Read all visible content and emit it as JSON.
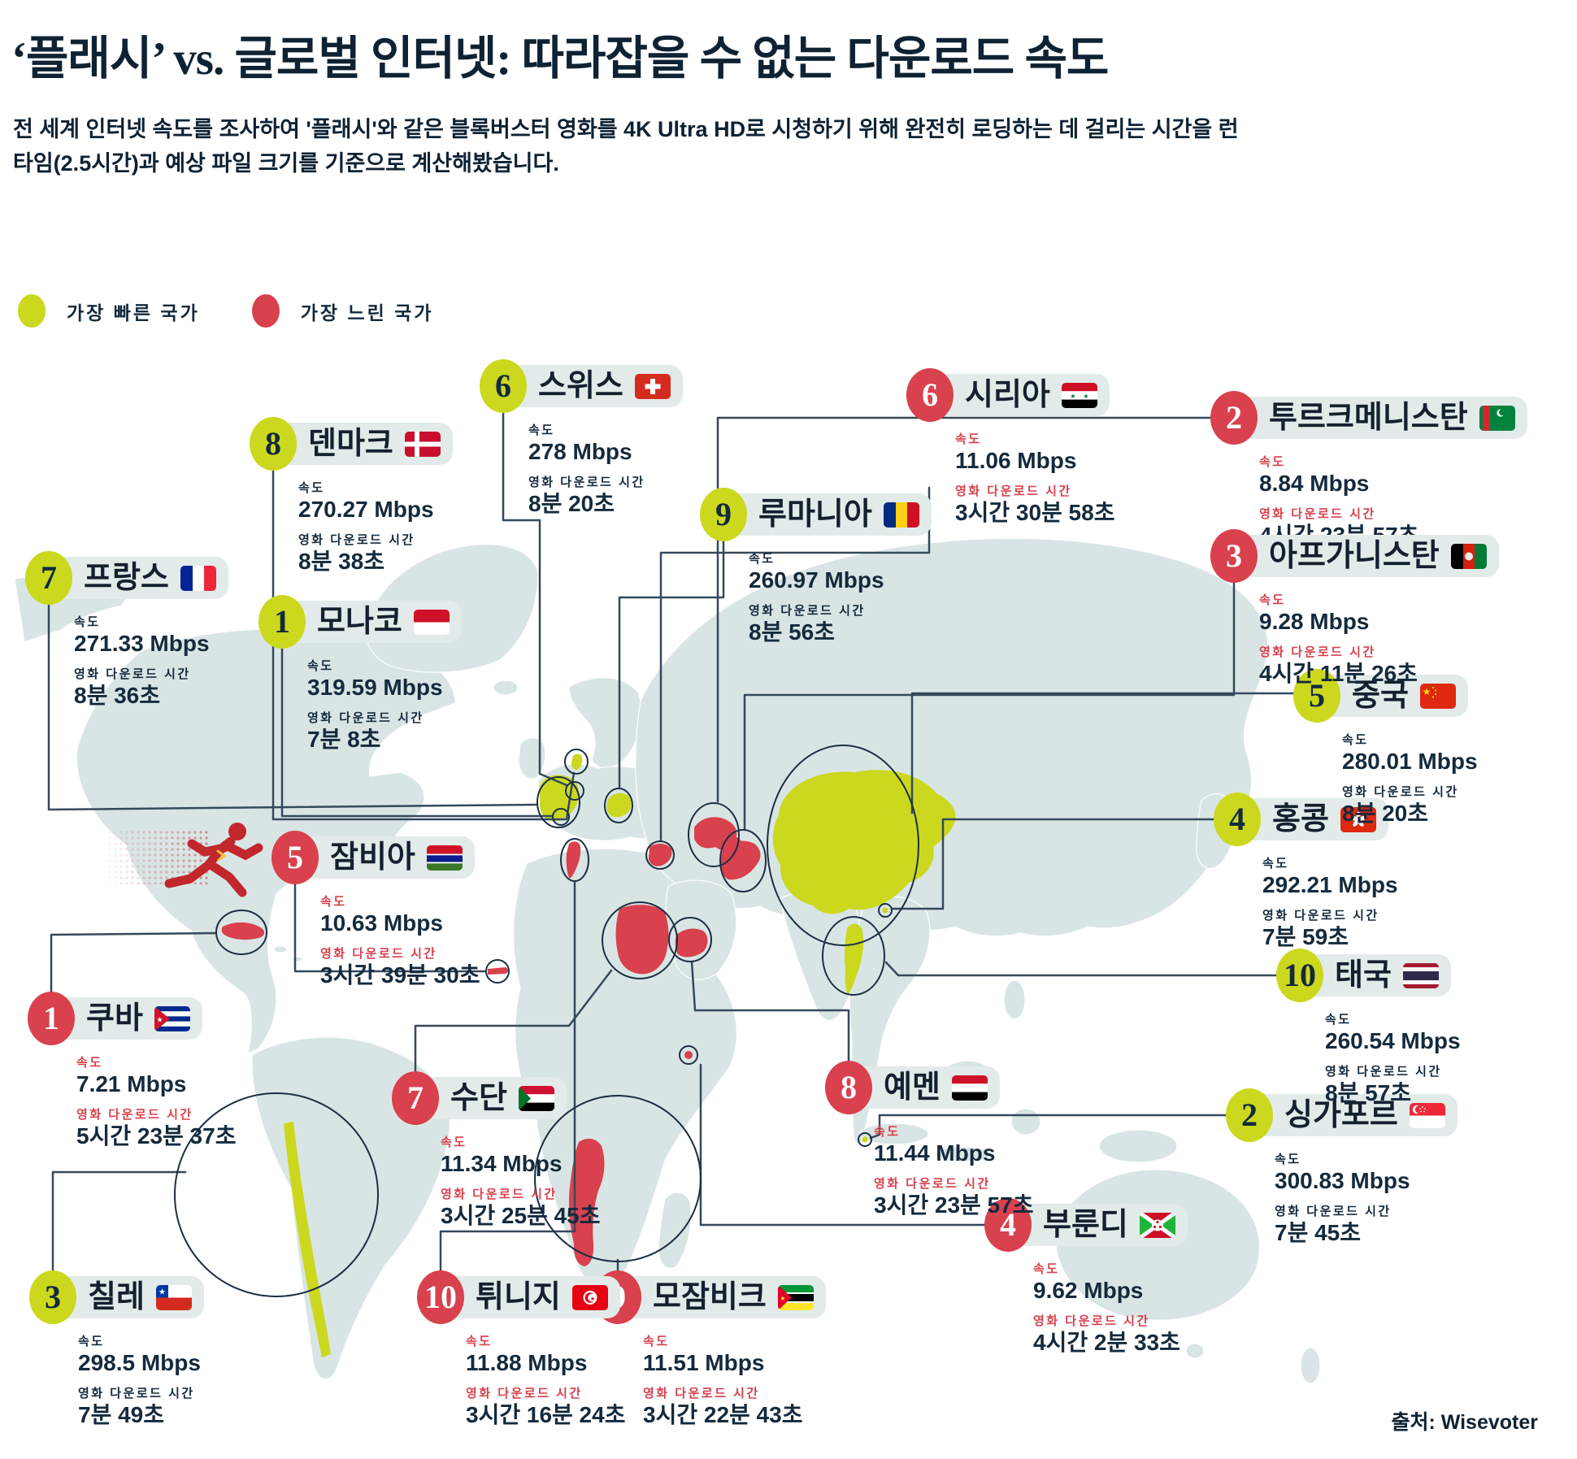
{
  "title": "‘플래시’ vs. 글로벌 인터넷: 따라잡을 수 없는 다운로드 속도",
  "subtitle": "전 세계 인터넷 속도를 조사하여 '플래시'와 같은 블록버스터 영화를 4K Ultra HD로 시청하기 위해 완전히 로딩하는 데 걸리는 시간을 런타임(2.5시간)과 예상 파일 크기를 기준으로 계산해봤습니다.",
  "legend": {
    "fast": "가장 빠른 국가",
    "slow": "가장 느린 국가"
  },
  "labels": {
    "speed": "속도",
    "download_time": "영화 다운로드 시간"
  },
  "source": "출처: Wisevoter",
  "colors": {
    "fast": "#cbd81e",
    "slow": "#d8414d",
    "navy": "#142a3d",
    "pill": "#e2ebe9",
    "land": "#d9e5e4",
    "line": "#35495d"
  },
  "countries": [
    {
      "id": "monaco",
      "rank": "1",
      "group": "fast",
      "name": "모나코",
      "speed": "319.59 Mbps",
      "time": "7분 8초"
    },
    {
      "id": "singapore",
      "rank": "2",
      "group": "fast",
      "name": "싱가포르",
      "speed": "300.83 Mbps",
      "time": "7분 45초"
    },
    {
      "id": "chile",
      "rank": "3",
      "group": "fast",
      "name": "칠레",
      "speed": "298.5 Mbps",
      "time": "7분 49초"
    },
    {
      "id": "hongkong",
      "rank": "4",
      "group": "fast",
      "name": "홍콩",
      "speed": "292.21 Mbps",
      "time": "7분 59초"
    },
    {
      "id": "china",
      "rank": "5",
      "group": "fast",
      "name": "중국",
      "speed": "280.01 Mbps",
      "time": "8분 20초"
    },
    {
      "id": "switzerland",
      "rank": "6",
      "group": "fast",
      "name": "스위스",
      "speed": "278 Mbps",
      "time": "8분 20초"
    },
    {
      "id": "france",
      "rank": "7",
      "group": "fast",
      "name": "프랑스",
      "speed": "271.33 Mbps",
      "time": "8분 36초"
    },
    {
      "id": "denmark",
      "rank": "8",
      "group": "fast",
      "name": "덴마크",
      "speed": "270.27 Mbps",
      "time": "8분 38초"
    },
    {
      "id": "romania",
      "rank": "9",
      "group": "fast",
      "name": "루마니아",
      "speed": "260.97 Mbps",
      "time": "8분 56초"
    },
    {
      "id": "thailand",
      "rank": "10",
      "group": "fast",
      "name": "태국",
      "speed": "260.54 Mbps",
      "time": "8분 57초"
    },
    {
      "id": "cuba",
      "rank": "1",
      "group": "slow",
      "name": "쿠바",
      "speed": "7.21 Mbps",
      "time": "5시간 23분 37초"
    },
    {
      "id": "turkmenistan",
      "rank": "2",
      "group": "slow",
      "name": "투르크메니스탄",
      "speed": "8.84 Mbps",
      "time": "4시간 23분 57초"
    },
    {
      "id": "afghanistan",
      "rank": "3",
      "group": "slow",
      "name": "아프가니스탄",
      "speed": "9.28 Mbps",
      "time": "4시간 11분 26초"
    },
    {
      "id": "burundi",
      "rank": "4",
      "group": "slow",
      "name": "부룬디",
      "speed": "9.62 Mbps",
      "time": "4시간 2분 33초"
    },
    {
      "id": "gambia",
      "rank": "5",
      "group": "slow",
      "name": "잠비아",
      "speed": "10.63 Mbps",
      "time": "3시간 39분 30초"
    },
    {
      "id": "syria",
      "rank": "6",
      "group": "slow",
      "name": "시리아",
      "speed": "11.06 Mbps",
      "time": "3시간 30분 58초"
    },
    {
      "id": "sudan",
      "rank": "7",
      "group": "slow",
      "name": "수단",
      "speed": "11.34 Mbps",
      "time": "3시간 25분 45초"
    },
    {
      "id": "yemen",
      "rank": "8",
      "group": "slow",
      "name": "예멘",
      "speed": "11.44 Mbps",
      "time": "3시간 23분 57초"
    },
    {
      "id": "mozambique",
      "rank": "9",
      "group": "slow",
      "name": "모잠비크",
      "speed": "11.51 Mbps",
      "time": "3시간 22분 43초"
    },
    {
      "id": "tunisia",
      "rank": "10",
      "group": "slow",
      "name": "튀니지",
      "speed": "11.88 Mbps",
      "time": "3시간 16분 24초"
    }
  ],
  "chart_data": {
    "type": "map",
    "title": "‘플래시’ vs. 글로벌 인터넷: 따라잡을 수 없는 다운로드 속도",
    "groups": [
      {
        "name": "가장 빠른 국가",
        "color": "#cbd81e",
        "points": [
          {
            "rank": 1,
            "country": "모나코",
            "speed_mbps": 319.59,
            "download_time": "7분 8초"
          },
          {
            "rank": 2,
            "country": "싱가포르",
            "speed_mbps": 300.83,
            "download_time": "7분 45초"
          },
          {
            "rank": 3,
            "country": "칠레",
            "speed_mbps": 298.5,
            "download_time": "7분 49초"
          },
          {
            "rank": 4,
            "country": "홍콩",
            "speed_mbps": 292.21,
            "download_time": "7분 59초"
          },
          {
            "rank": 5,
            "country": "중국",
            "speed_mbps": 280.01,
            "download_time": "8분 20초"
          },
          {
            "rank": 6,
            "country": "스위스",
            "speed_mbps": 278,
            "download_time": "8분 20초"
          },
          {
            "rank": 7,
            "country": "프랑스",
            "speed_mbps": 271.33,
            "download_time": "8분 36초"
          },
          {
            "rank": 8,
            "country": "덴마크",
            "speed_mbps": 270.27,
            "download_time": "8분 38초"
          },
          {
            "rank": 9,
            "country": "루마니아",
            "speed_mbps": 260.97,
            "download_time": "8분 56초"
          },
          {
            "rank": 10,
            "country": "태국",
            "speed_mbps": 260.54,
            "download_time": "8분 57초"
          }
        ]
      },
      {
        "name": "가장 느린 국가",
        "color": "#d8414d",
        "points": [
          {
            "rank": 1,
            "country": "쿠바",
            "speed_mbps": 7.21,
            "download_time": "5시간 23분 37초"
          },
          {
            "rank": 2,
            "country": "투르크메니스탄",
            "speed_mbps": 8.84,
            "download_time": "4시간 23분 57초"
          },
          {
            "rank": 3,
            "country": "아프가니스탄",
            "speed_mbps": 9.28,
            "download_time": "4시간 11분 26초"
          },
          {
            "rank": 4,
            "country": "부룬디",
            "speed_mbps": 9.62,
            "download_time": "4시간 2분 33초"
          },
          {
            "rank": 5,
            "country": "잠비아",
            "speed_mbps": 10.63,
            "download_time": "3시간 39분 30초"
          },
          {
            "rank": 6,
            "country": "시리아",
            "speed_mbps": 11.06,
            "download_time": "3시간 30분 58초"
          },
          {
            "rank": 7,
            "country": "수단",
            "speed_mbps": 11.34,
            "download_time": "3시간 25분 45초"
          },
          {
            "rank": 8,
            "country": "예멘",
            "speed_mbps": 11.44,
            "download_time": "3시간 23분 57초"
          },
          {
            "rank": 9,
            "country": "모잠비크",
            "speed_mbps": 11.51,
            "download_time": "3시간 22분 43초"
          },
          {
            "rank": 10,
            "country": "튀니지",
            "speed_mbps": 11.88,
            "download_time": "3시간 16분 24초"
          }
        ]
      }
    ]
  }
}
